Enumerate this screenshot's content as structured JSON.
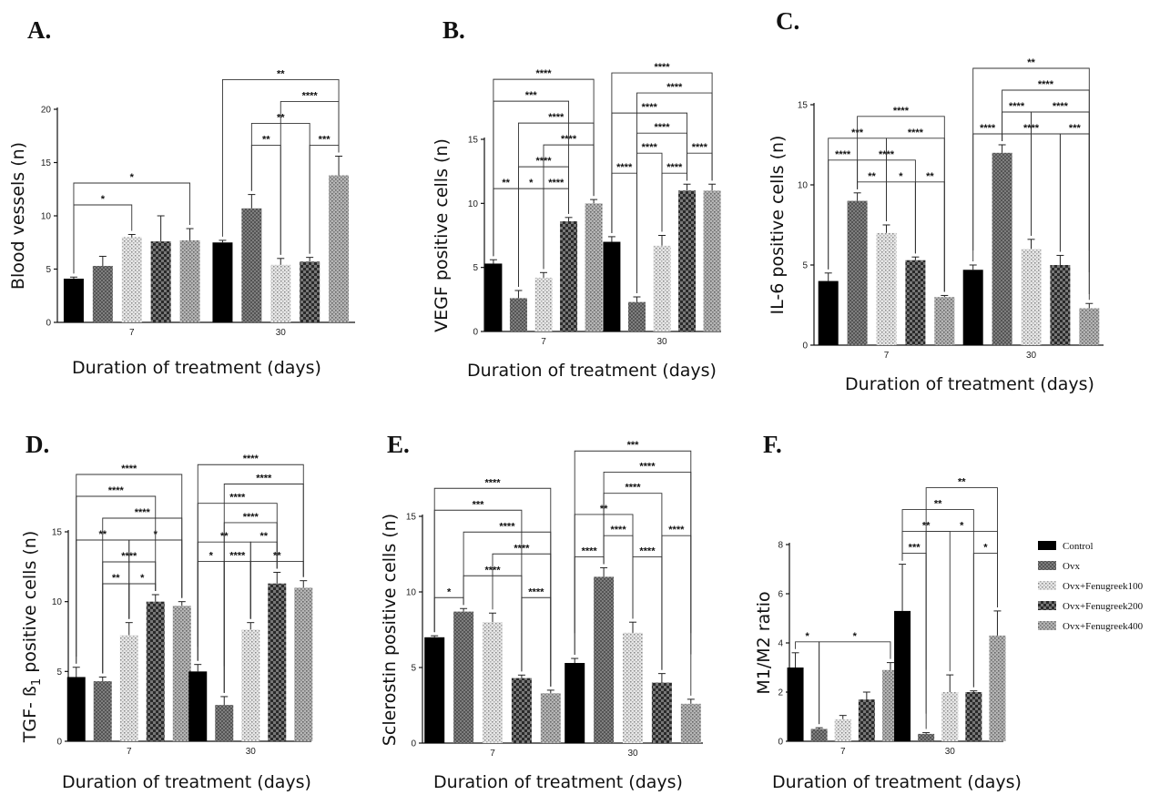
{
  "chart_data": [
    {
      "type": "bar",
      "panel": "A.",
      "ylabel": "Blood vessels (n)",
      "xlabel": "Duration of treatment (days)",
      "categories": [
        "7",
        "30"
      ],
      "ylim": [
        0,
        20
      ],
      "yticks": [
        0,
        5,
        10,
        15,
        20
      ],
      "series": [
        {
          "name": "Control",
          "values": [
            4.1,
            7.5
          ],
          "errors": [
            0.15,
            0.2
          ]
        },
        {
          "name": "Ovx",
          "values": [
            5.3,
            10.7
          ],
          "errors": [
            0.9,
            1.3
          ]
        },
        {
          "name": "Ovx+Fenugreek100",
          "values": [
            8.0,
            5.4
          ],
          "errors": [
            0.25,
            0.6
          ]
        },
        {
          "name": "Ovx+Fenugreek200",
          "values": [
            7.6,
            5.7
          ],
          "errors": [
            2.4,
            0.4
          ]
        },
        {
          "name": "Ovx+Fenugreek400",
          "values": [
            7.7,
            13.8
          ],
          "errors": [
            1.1,
            1.8
          ]
        }
      ],
      "significance": [
        {
          "group": 0,
          "from": 0,
          "to": 2,
          "label": "*",
          "level": 0
        },
        {
          "group": 0,
          "from": 0,
          "to": 4,
          "label": "*",
          "level": 1
        },
        {
          "group": 1,
          "from": 1,
          "to": 2,
          "label": "**",
          "level": 0
        },
        {
          "group": 1,
          "from": 3,
          "to": 4,
          "label": "***",
          "level": 0
        },
        {
          "group": 1,
          "from": 1,
          "to": 3,
          "label": "**",
          "level": 1
        },
        {
          "group": 1,
          "from": 2,
          "to": 4,
          "label": "****",
          "level": 2
        },
        {
          "group": 1,
          "from": 0,
          "to": 4,
          "label": "**",
          "level": 3
        }
      ]
    },
    {
      "type": "bar",
      "panel": "B.",
      "ylabel": "VEGF positive cells (n)",
      "xlabel": "Duration of treatment (days)",
      "categories": [
        "7",
        "30"
      ],
      "ylim": [
        0,
        15
      ],
      "yticks": [
        0,
        5,
        10,
        15
      ],
      "series": [
        {
          "name": "Control",
          "values": [
            5.3,
            7.0
          ],
          "errors": [
            0.3,
            0.4
          ]
        },
        {
          "name": "Ovx",
          "values": [
            2.6,
            2.3
          ],
          "errors": [
            0.6,
            0.4
          ]
        },
        {
          "name": "Ovx+Fenugreek100",
          "values": [
            4.2,
            6.7
          ],
          "errors": [
            0.4,
            0.8
          ]
        },
        {
          "name": "Ovx+Fenugreek200",
          "values": [
            8.6,
            11.0
          ],
          "errors": [
            0.3,
            0.5
          ]
        },
        {
          "name": "Ovx+Fenugreek400",
          "values": [
            10.0,
            11.0
          ],
          "errors": [
            0.3,
            0.5
          ]
        }
      ],
      "significance": [
        {
          "group": 0,
          "from": 0,
          "to": 1,
          "label": "**",
          "level": 0
        },
        {
          "group": 0,
          "from": 1,
          "to": 2,
          "label": "*",
          "level": 0
        },
        {
          "group": 0,
          "from": 2,
          "to": 3,
          "label": "****",
          "level": 0
        },
        {
          "group": 0,
          "from": 1,
          "to": 3,
          "label": "****",
          "level": 1
        },
        {
          "group": 0,
          "from": 2,
          "to": 4,
          "label": "****",
          "level": 2
        },
        {
          "group": 0,
          "from": 1,
          "to": 4,
          "label": "****",
          "level": 3
        },
        {
          "group": 0,
          "from": 0,
          "to": 3,
          "label": "***",
          "level": 4
        },
        {
          "group": 0,
          "from": 0,
          "to": 4,
          "label": "****",
          "level": 5
        },
        {
          "group": 1,
          "from": 0,
          "to": 1,
          "label": "****",
          "level": 0
        },
        {
          "group": 1,
          "from": 2,
          "to": 3,
          "label": "****",
          "level": 0
        },
        {
          "group": 1,
          "from": 1,
          "to": 2,
          "label": "****",
          "level": 1
        },
        {
          "group": 1,
          "from": 3,
          "to": 4,
          "label": "****",
          "level": 1
        },
        {
          "group": 1,
          "from": 1,
          "to": 3,
          "label": "****",
          "level": 2
        },
        {
          "group": 1,
          "from": 0,
          "to": 3,
          "label": "****",
          "level": 3
        },
        {
          "group": 1,
          "from": 1,
          "to": 4,
          "label": "****",
          "level": 4
        },
        {
          "group": 1,
          "from": 0,
          "to": 4,
          "label": "****",
          "level": 5
        }
      ]
    },
    {
      "type": "bar",
      "panel": "C.",
      "ylabel": "IL-6 positive cells (n)",
      "xlabel": "Duration of treatment (days)",
      "categories": [
        "7",
        "30"
      ],
      "ylim": [
        0,
        15
      ],
      "yticks": [
        0,
        5,
        10,
        15
      ],
      "series": [
        {
          "name": "Control",
          "values": [
            4.0,
            4.7
          ],
          "errors": [
            0.5,
            0.3
          ]
        },
        {
          "name": "Ovx",
          "values": [
            9.0,
            12.0
          ],
          "errors": [
            0.5,
            0.5
          ]
        },
        {
          "name": "Ovx+Fenugreek100",
          "values": [
            7.0,
            6.0
          ],
          "errors": [
            0.5,
            0.6
          ]
        },
        {
          "name": "Ovx+Fenugreek200",
          "values": [
            5.3,
            5.0
          ],
          "errors": [
            0.2,
            0.6
          ]
        },
        {
          "name": "Ovx+Fenugreek400",
          "values": [
            3.0,
            2.3
          ],
          "errors": [
            0.1,
            0.3
          ]
        }
      ],
      "significance": [
        {
          "group": 0,
          "from": 1,
          "to": 2,
          "label": "**",
          "level": 0
        },
        {
          "group": 0,
          "from": 2,
          "to": 3,
          "label": "*",
          "level": 0
        },
        {
          "group": 0,
          "from": 3,
          "to": 4,
          "label": "**",
          "level": 0
        },
        {
          "group": 0,
          "from": 0,
          "to": 1,
          "label": "****",
          "level": 1
        },
        {
          "group": 0,
          "from": 1,
          "to": 3,
          "label": "****",
          "level": 1
        },
        {
          "group": 0,
          "from": 0,
          "to": 2,
          "label": "***",
          "level": 2
        },
        {
          "group": 0,
          "from": 2,
          "to": 4,
          "label": "****",
          "level": 2
        },
        {
          "group": 0,
          "from": 1,
          "to": 4,
          "label": "****",
          "level": 3
        },
        {
          "group": 1,
          "from": 0,
          "to": 1,
          "label": "****",
          "level": 0
        },
        {
          "group": 1,
          "from": 1,
          "to": 3,
          "label": "****",
          "level": 0
        },
        {
          "group": 1,
          "from": 3,
          "to": 4,
          "label": "***",
          "level": 0
        },
        {
          "group": 1,
          "from": 1,
          "to": 2,
          "label": "****",
          "level": 1
        },
        {
          "group": 1,
          "from": 2,
          "to": 4,
          "label": "****",
          "level": 1
        },
        {
          "group": 1,
          "from": 1,
          "to": 4,
          "label": "****",
          "level": 2
        },
        {
          "group": 1,
          "from": 0,
          "to": 4,
          "label": "**",
          "level": 3
        }
      ]
    },
    {
      "type": "bar",
      "panel": "D.",
      "ylabel": "TGF- ß",
      "ylabel_sub": "1",
      "ylabel_rest": " positive cells (n)",
      "xlabel": "Duration of treatment (days)",
      "categories": [
        "7",
        "30"
      ],
      "ylim": [
        0,
        15
      ],
      "yticks": [
        0,
        5,
        10,
        15
      ],
      "series": [
        {
          "name": "Control",
          "values": [
            4.6,
            5.0
          ],
          "errors": [
            0.7,
            0.5
          ]
        },
        {
          "name": "Ovx",
          "values": [
            4.3,
            2.6
          ],
          "errors": [
            0.3,
            0.6
          ]
        },
        {
          "name": "Ovx+Fenugreek100",
          "values": [
            7.6,
            8.0
          ],
          "errors": [
            0.9,
            0.5
          ]
        },
        {
          "name": "Ovx+Fenugreek200",
          "values": [
            10.0,
            11.3
          ],
          "errors": [
            0.5,
            0.8
          ]
        },
        {
          "name": "Ovx+Fenugreek400",
          "values": [
            9.7,
            11.0
          ],
          "errors": [
            0.3,
            0.5
          ]
        }
      ],
      "significance": [
        {
          "group": 0,
          "from": 1,
          "to": 2,
          "label": "**",
          "level": 0
        },
        {
          "group": 0,
          "from": 2,
          "to": 3,
          "label": "*",
          "level": 0
        },
        {
          "group": 0,
          "from": 1,
          "to": 3,
          "label": "****",
          "level": 1
        },
        {
          "group": 0,
          "from": 0,
          "to": 2,
          "label": "**",
          "level": 2
        },
        {
          "group": 0,
          "from": 2,
          "to": 4,
          "label": "*",
          "level": 2
        },
        {
          "group": 0,
          "from": 1,
          "to": 4,
          "label": "****",
          "level": 3
        },
        {
          "group": 0,
          "from": 0,
          "to": 3,
          "label": "****",
          "level": 4
        },
        {
          "group": 0,
          "from": 0,
          "to": 4,
          "label": "****",
          "level": 5
        },
        {
          "group": 1,
          "from": 0,
          "to": 1,
          "label": "*",
          "level": 0
        },
        {
          "group": 1,
          "from": 1,
          "to": 2,
          "label": "****",
          "level": 0
        },
        {
          "group": 1,
          "from": 2,
          "to": 4,
          "label": "**",
          "level": 0
        },
        {
          "group": 1,
          "from": 0,
          "to": 2,
          "label": "**",
          "level": 1
        },
        {
          "group": 1,
          "from": 2,
          "to": 3,
          "label": "**",
          "level": 1
        },
        {
          "group": 1,
          "from": 1,
          "to": 3,
          "label": "****",
          "level": 2
        },
        {
          "group": 1,
          "from": 0,
          "to": 3,
          "label": "****",
          "level": 3
        },
        {
          "group": 1,
          "from": 1,
          "to": 4,
          "label": "****",
          "level": 4
        },
        {
          "group": 1,
          "from": 0,
          "to": 4,
          "label": "****",
          "level": 5
        }
      ]
    },
    {
      "type": "bar",
      "panel": "E.",
      "ylabel": "Sclerostin positive cells (n)",
      "xlabel": "Duration of treatment (days)",
      "categories": [
        "7",
        "30"
      ],
      "ylim": [
        0,
        15
      ],
      "yticks": [
        0,
        5,
        10,
        15
      ],
      "series": [
        {
          "name": "Control",
          "values": [
            7.0,
            5.3
          ],
          "errors": [
            0.1,
            0.3
          ]
        },
        {
          "name": "Ovx",
          "values": [
            8.7,
            11.0
          ],
          "errors": [
            0.2,
            0.6
          ]
        },
        {
          "name": "Ovx+Fenugreek100",
          "values": [
            8.0,
            7.3
          ],
          "errors": [
            0.6,
            0.7
          ]
        },
        {
          "name": "Ovx+Fenugreek200",
          "values": [
            4.3,
            4.0
          ],
          "errors": [
            0.2,
            0.6
          ]
        },
        {
          "name": "Ovx+Fenugreek400",
          "values": [
            3.3,
            2.6
          ],
          "errors": [
            0.2,
            0.3
          ]
        }
      ],
      "significance": [
        {
          "group": 0,
          "from": 0,
          "to": 1,
          "label": "*",
          "level": 0
        },
        {
          "group": 0,
          "from": 3,
          "to": 4,
          "label": "****",
          "level": 0
        },
        {
          "group": 0,
          "from": 1,
          "to": 3,
          "label": "****",
          "level": 1
        },
        {
          "group": 0,
          "from": 2,
          "to": 4,
          "label": "****",
          "level": 2
        },
        {
          "group": 0,
          "from": 1,
          "to": 4,
          "label": "****",
          "level": 3
        },
        {
          "group": 0,
          "from": 0,
          "to": 3,
          "label": "***",
          "level": 4
        },
        {
          "group": 0,
          "from": 0,
          "to": 4,
          "label": "****",
          "level": 5
        },
        {
          "group": 1,
          "from": 0,
          "to": 1,
          "label": "****",
          "level": 0
        },
        {
          "group": 1,
          "from": 2,
          "to": 3,
          "label": "****",
          "level": 0
        },
        {
          "group": 1,
          "from": 1,
          "to": 2,
          "label": "****",
          "level": 1
        },
        {
          "group": 1,
          "from": 3,
          "to": 4,
          "label": "****",
          "level": 1
        },
        {
          "group": 1,
          "from": 0,
          "to": 2,
          "label": "**",
          "level": 2
        },
        {
          "group": 1,
          "from": 1,
          "to": 3,
          "label": "****",
          "level": 3
        },
        {
          "group": 1,
          "from": 1,
          "to": 4,
          "label": "****",
          "level": 4
        },
        {
          "group": 1,
          "from": 0,
          "to": 4,
          "label": "***",
          "level": 5
        }
      ]
    },
    {
      "type": "bar",
      "panel": "F.",
      "ylabel": "M1/M2 ratio",
      "xlabel": "Duration of treatment (days)",
      "categories": [
        "7",
        "30"
      ],
      "ylim": [
        0,
        8
      ],
      "yticks": [
        0,
        2,
        4,
        6,
        8
      ],
      "series": [
        {
          "name": "Control",
          "values": [
            3.0,
            5.3
          ],
          "errors": [
            0.6,
            1.9
          ]
        },
        {
          "name": "Ovx",
          "values": [
            0.5,
            0.3
          ],
          "errors": [
            0.05,
            0.05
          ]
        },
        {
          "name": "Ovx+Fenugreek100",
          "values": [
            0.9,
            2.0
          ],
          "errors": [
            0.15,
            0.7
          ]
        },
        {
          "name": "Ovx+Fenugreek200",
          "values": [
            1.7,
            2.0
          ],
          "errors": [
            0.3,
            0.05
          ]
        },
        {
          "name": "Ovx+Fenugreek400",
          "values": [
            2.9,
            4.3
          ],
          "errors": [
            0.3,
            1.0
          ]
        }
      ],
      "significance": [
        {
          "group": 0,
          "from": 0,
          "to": 1,
          "label": "*",
          "level": 0
        },
        {
          "group": 0,
          "from": 1,
          "to": 4,
          "label": "*",
          "level": 0
        },
        {
          "group": 1,
          "from": 0,
          "to": 1,
          "label": "***",
          "level": 0
        },
        {
          "group": 1,
          "from": 3,
          "to": 4,
          "label": "*",
          "level": 0
        },
        {
          "group": 1,
          "from": 0,
          "to": 2,
          "label": "**",
          "level": 1
        },
        {
          "group": 1,
          "from": 1,
          "to": 4,
          "label": "*",
          "level": 1
        },
        {
          "group": 1,
          "from": 0,
          "to": 3,
          "label": "**",
          "level": 2
        },
        {
          "group": 1,
          "from": 1,
          "to": 4,
          "label": "**",
          "level": 3
        }
      ]
    }
  ],
  "legend": {
    "placement": "right",
    "items": [
      {
        "name": "Control",
        "pattern": "solid-black"
      },
      {
        "name": "Ovx",
        "pattern": "dark-grey-crosshatch"
      },
      {
        "name": "Ovx+Fenugreek100",
        "pattern": "light-dots"
      },
      {
        "name": "Ovx+Fenugreek200",
        "pattern": "dark-checker"
      },
      {
        "name": "Ovx+Fenugreek400",
        "pattern": "medium-grey-dots"
      }
    ]
  }
}
